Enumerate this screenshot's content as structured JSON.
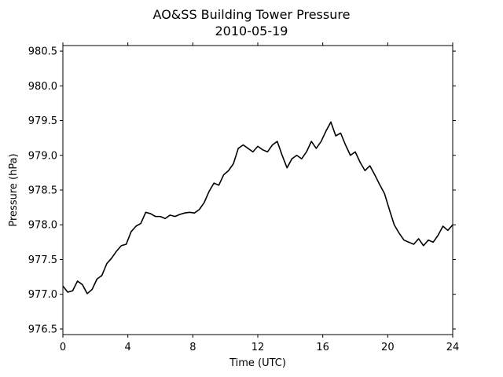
{
  "chart_data": {
    "type": "line",
    "title": "AO&SS Building Tower Pressure",
    "subtitle": "2010-05-19",
    "xlabel": "Time (UTC)",
    "ylabel": "Pressure (hPa)",
    "xlim": [
      0,
      24
    ],
    "ylim": [
      976.42,
      980.58
    ],
    "xticks": [
      0,
      4,
      8,
      12,
      16,
      20,
      24
    ],
    "xtick_labels": [
      "0",
      "4",
      "8",
      "12",
      "16",
      "20",
      "24"
    ],
    "yticks": [
      976.5,
      977.0,
      977.5,
      978.0,
      978.5,
      979.0,
      979.5,
      980.0,
      980.5
    ],
    "ytick_labels": [
      "976.5",
      "977.0",
      "977.5",
      "978.0",
      "978.5",
      "979.0",
      "979.5",
      "980.0",
      "980.5"
    ],
    "grid": false,
    "line_color": "#000000",
    "series": [
      {
        "x": [
          0,
          0.3,
          0.6,
          0.9,
          1.2,
          1.5,
          1.8,
          2.1,
          2.4,
          2.7,
          3.0,
          3.3,
          3.6,
          3.9,
          4.2,
          4.5,
          4.8,
          5.1,
          5.4,
          5.7,
          6.0,
          6.3,
          6.6,
          6.9,
          7.2,
          7.5,
          7.8,
          8.1,
          8.4,
          8.7,
          9.0,
          9.3,
          9.6,
          9.9,
          10.2,
          10.5,
          10.8,
          11.1,
          11.4,
          11.7,
          12.0,
          12.3,
          12.6,
          12.9,
          13.2,
          13.5,
          13.8,
          14.1,
          14.4,
          14.7,
          15.0,
          15.3,
          15.6,
          15.9,
          16.2,
          16.5,
          16.8,
          17.1,
          17.4,
          17.7,
          18.0,
          18.3,
          18.6,
          18.9,
          19.2,
          19.5,
          19.8,
          20.1,
          20.4,
          20.7,
          21.0,
          21.3,
          21.6,
          21.9,
          22.2,
          22.5,
          22.8,
          23.1,
          23.4,
          23.7,
          24.0
        ],
        "values": [
          977.12,
          977.03,
          977.05,
          977.19,
          977.14,
          977.01,
          977.07,
          977.22,
          977.27,
          977.44,
          977.52,
          977.62,
          977.7,
          977.72,
          977.9,
          977.98,
          978.02,
          978.18,
          978.16,
          978.12,
          978.12,
          978.09,
          978.14,
          978.12,
          978.15,
          978.17,
          978.18,
          978.17,
          978.22,
          978.32,
          978.48,
          978.6,
          978.57,
          978.72,
          978.78,
          978.88,
          979.1,
          979.15,
          979.1,
          979.05,
          979.13,
          979.08,
          979.05,
          979.15,
          979.2,
          979.0,
          978.82,
          978.95,
          979.0,
          978.95,
          979.05,
          979.2,
          979.1,
          979.2,
          979.35,
          979.48,
          979.28,
          979.32,
          979.15,
          979.0,
          979.05,
          978.9,
          978.78,
          978.85,
          978.72,
          978.58,
          978.45,
          978.22,
          978.0,
          977.88,
          977.78,
          977.75,
          977.72,
          977.8,
          977.7,
          977.78,
          977.75,
          977.85,
          977.98,
          977.92,
          978.0
        ]
      }
    ]
  }
}
